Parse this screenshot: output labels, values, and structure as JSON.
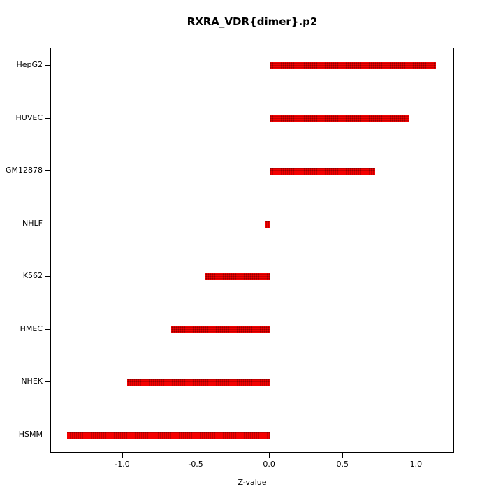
{
  "chart_data": {
    "type": "bar",
    "orientation": "horizontal",
    "title": "RXRA_VDR{dimer}.p2",
    "xlabel": "Z-value",
    "categories": [
      "HepG2",
      "HUVEC",
      "GM12878",
      "NHLF",
      "K562",
      "HMEC",
      "NHEK",
      "HSMM"
    ],
    "values": [
      1.13,
      0.95,
      0.72,
      -0.03,
      -0.44,
      -0.67,
      -0.97,
      -1.38
    ],
    "x_ticks": [
      -1.0,
      -0.5,
      0.0,
      0.5,
      1.0
    ],
    "x_tick_labels": [
      "-1.0",
      "-0.5",
      "0.0",
      "0.5",
      "1.0"
    ],
    "xlim": [
      -1.49,
      1.26
    ],
    "bar_color": "#f40000",
    "zero_line_color": "#22dd22",
    "zero_line_x": 0.0,
    "grid": false,
    "legend": false
  }
}
